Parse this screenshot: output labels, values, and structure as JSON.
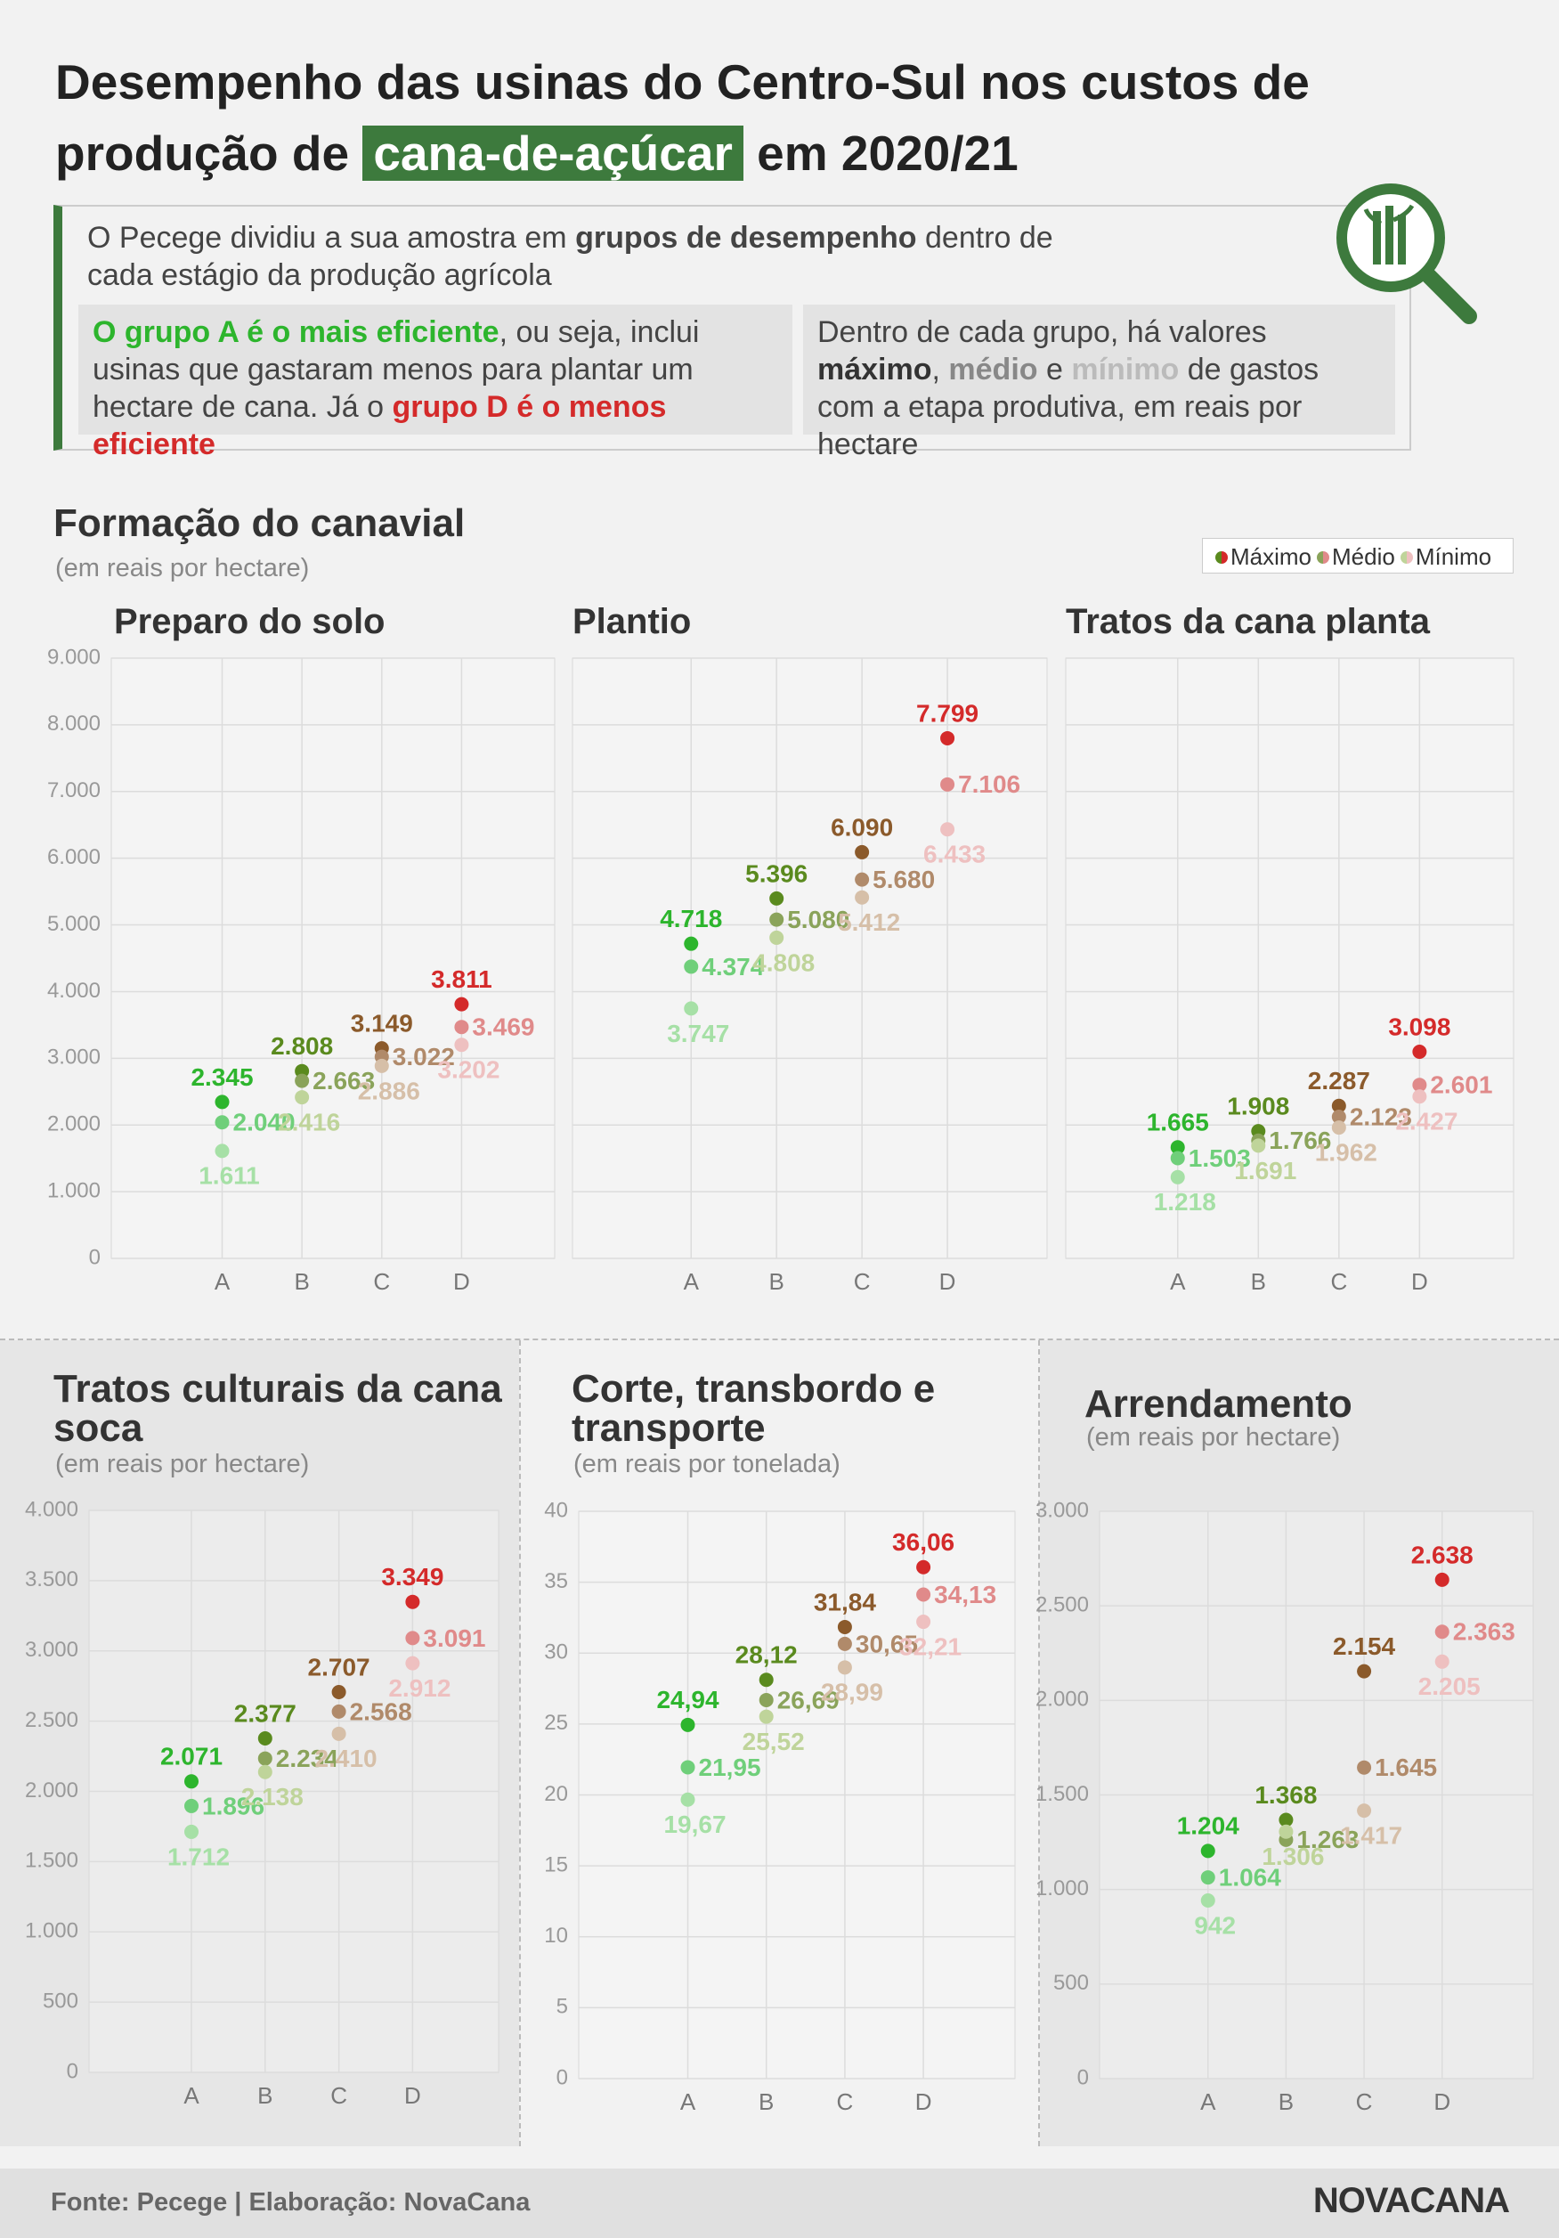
{
  "header": {
    "title_parts": [
      "Desempenho das usinas do Centro-Sul nos custos de",
      "produção de",
      "cana-de-açúcar",
      "em 2020/21"
    ]
  },
  "intro": {
    "text": [
      "O Pecege dividiu a sua amostra em",
      "grupos de desempenho",
      "dentro de cada estágio da produção agrícola"
    ],
    "left_box": [
      "O grupo A é o mais eficiente",
      ", ou seja, inclui usinas que gastaram menos para plantar um hectare de cana. Já o",
      "grupo D é o menos eficiente"
    ],
    "right_box": [
      "Dentro de cada grupo, há valores",
      "máximo",
      ",",
      "médio",
      "e",
      "mínimo",
      "de gastos com a etapa produtiva, em reais por hectare"
    ]
  },
  "section": {
    "title": "Formação do canavial",
    "subtitle": "(em reais por hectare)"
  },
  "legend": {
    "items": [
      "Máximo",
      "Médio",
      "Mínimo"
    ]
  },
  "chart_data": [
    {
      "type": "dot",
      "title": "Preparo do solo",
      "categories": [
        "A",
        "B",
        "C",
        "D"
      ],
      "ylim": [
        0,
        9000
      ],
      "yticks": [
        0,
        {
          "value": 1000,
          "label": "1.000"
        },
        {
          "value": 2000,
          "label": "2.000"
        },
        {
          "value": 3000,
          "label": "3.000"
        },
        {
          "value": 4000,
          "label": "4.000"
        },
        {
          "value": 5000,
          "label": "5.000"
        },
        {
          "value": 6000,
          "label": "6.000"
        },
        {
          "value": 7000,
          "label": "7.000"
        },
        {
          "value": 8000,
          "label": "8.000"
        },
        {
          "value": 9000,
          "label": "9.000"
        }
      ],
      "series": [
        {
          "colors": [
            "#2db52d",
            "#5a8a1e",
            "#8b5a2b",
            "#d42a2a"
          ],
          "values": [
            2345,
            2808,
            3149,
            3811
          ],
          "value_labels": [
            "2.345",
            "2.808",
            "3.149",
            "3.811"
          ]
        },
        {
          "colors": [
            "#6fcf7a",
            "#8aa35a",
            "#b08a6a",
            "#e08a8a"
          ],
          "values": [
            2040,
            2663,
            3022,
            3469
          ],
          "value_labels": [
            "2.040",
            "2.663",
            "3.022",
            "3.469"
          ]
        },
        {
          "colors": [
            "#a6e0a6",
            "#bfd49a",
            "#d6bfa8",
            "#eec0c0"
          ],
          "values": [
            1611,
            2416,
            2886,
            3202
          ],
          "value_labels": [
            "1.611",
            "2.416",
            "2.886",
            "3.202"
          ]
        }
      ]
    },
    {
      "type": "dot",
      "title": "Plantio",
      "categories": [
        "A",
        "B",
        "C",
        "D"
      ],
      "ylim": [
        0,
        9000
      ],
      "series": [
        {
          "colors": [
            "#2db52d",
            "#5a8a1e",
            "#8b5a2b",
            "#d42a2a"
          ],
          "values": [
            4718,
            5396,
            6090,
            7799
          ],
          "value_labels": [
            "4.718",
            "5.396",
            "6.090",
            "7.799"
          ]
        },
        {
          "colors": [
            "#6fcf7a",
            "#8aa35a",
            "#b08a6a",
            "#e08a8a"
          ],
          "values": [
            4374,
            5080,
            5680,
            7106
          ],
          "value_labels": [
            "4.374",
            "5.080",
            "5.680",
            "7.106"
          ]
        },
        {
          "colors": [
            "#a6e0a6",
            "#bfd49a",
            "#d6bfa8",
            "#eec0c0"
          ],
          "values": [
            3747,
            4808,
            5412,
            6433
          ],
          "value_labels": [
            "3.747",
            "4.808",
            "5.412",
            "6.433"
          ]
        }
      ]
    },
    {
      "type": "dot",
      "title": "Tratos da cana planta",
      "categories": [
        "A",
        "B",
        "C",
        "D"
      ],
      "ylim": [
        0,
        9000
      ],
      "series": [
        {
          "colors": [
            "#2db52d",
            "#5a8a1e",
            "#8b5a2b",
            "#d42a2a"
          ],
          "values": [
            1665,
            1908,
            2287,
            3098
          ],
          "value_labels": [
            "1.665",
            "1.908",
            "2.287",
            "3.098"
          ]
        },
        {
          "colors": [
            "#6fcf7a",
            "#8aa35a",
            "#b08a6a",
            "#e08a8a"
          ],
          "values": [
            1503,
            1766,
            2123,
            2601
          ],
          "value_labels": [
            "1.503",
            "1.766",
            "2.123",
            "2.601"
          ]
        },
        {
          "colors": [
            "#a6e0a6",
            "#bfd49a",
            "#d6bfa8",
            "#eec0c0"
          ],
          "values": [
            1218,
            1691,
            1962,
            2427
          ],
          "value_labels": [
            "1.218",
            "1.691",
            "1.962",
            "2.427"
          ]
        }
      ]
    },
    {
      "type": "dot",
      "title": "Tratos culturais da cana soca",
      "subtitle": "(em reais por hectare)",
      "categories": [
        "A",
        "B",
        "C",
        "D"
      ],
      "ylim": [
        0,
        4000
      ],
      "yticks": [
        0,
        500,
        {
          "value": 1000,
          "label": "1.000"
        },
        {
          "value": 1500,
          "label": "1.500"
        },
        {
          "value": 2000,
          "label": "2.000"
        },
        {
          "value": 2500,
          "label": "2.500"
        },
        {
          "value": 3000,
          "label": "3.000"
        },
        {
          "value": 3500,
          "label": "3.500"
        },
        {
          "value": 4000,
          "label": "4.000"
        }
      ],
      "series": [
        {
          "colors": [
            "#2db52d",
            "#5a8a1e",
            "#8b5a2b",
            "#d42a2a"
          ],
          "values": [
            2071,
            2377,
            2707,
            3349
          ],
          "value_labels": [
            "2.071",
            "2.377",
            "2.707",
            "3.349"
          ]
        },
        {
          "colors": [
            "#6fcf7a",
            "#8aa35a",
            "#b08a6a",
            "#e08a8a"
          ],
          "values": [
            1896,
            2234,
            2568,
            3091
          ],
          "value_labels": [
            "1.896",
            "2.234",
            "2.568",
            "3.091"
          ]
        },
        {
          "colors": [
            "#a6e0a6",
            "#bfd49a",
            "#d6bfa8",
            "#eec0c0"
          ],
          "values": [
            1712,
            2138,
            2410,
            2912
          ],
          "value_labels": [
            "1.712",
            "2.138",
            "2.410",
            "2.912"
          ]
        }
      ]
    },
    {
      "type": "dot",
      "title": "Corte, transbordo e transporte",
      "subtitle": "(em reais por tonelada)",
      "categories": [
        "A",
        "B",
        "C",
        "D"
      ],
      "ylim": [
        0,
        40
      ],
      "yticks": [
        0,
        5,
        10,
        15,
        20,
        25,
        30,
        35,
        40
      ],
      "series": [
        {
          "colors": [
            "#2db52d",
            "#5a8a1e",
            "#8b5a2b",
            "#d42a2a"
          ],
          "values": [
            24.94,
            28.12,
            31.84,
            36.06
          ],
          "value_labels": [
            "24,94",
            "28,12",
            "31,84",
            "36,06"
          ]
        },
        {
          "colors": [
            "#6fcf7a",
            "#8aa35a",
            "#b08a6a",
            "#e08a8a"
          ],
          "values": [
            21.95,
            26.69,
            30.65,
            34.13
          ],
          "value_labels": [
            "21,95",
            "26,69",
            "30,65",
            "34,13"
          ]
        },
        {
          "colors": [
            "#a6e0a6",
            "#bfd49a",
            "#d6bfa8",
            "#eec0c0"
          ],
          "values": [
            19.67,
            25.52,
            28.99,
            32.21
          ],
          "value_labels": [
            "19,67",
            "25,52",
            "28,99",
            "32,21"
          ]
        }
      ]
    },
    {
      "type": "dot",
      "title": "Arrendamento",
      "subtitle": "(em reais por hectare)",
      "categories": [
        "A",
        "B",
        "C",
        "D"
      ],
      "ylim": [
        0,
        3000
      ],
      "yticks": [
        0,
        500,
        {
          "value": 1000,
          "label": "1.000"
        },
        {
          "value": 1500,
          "label": "1.500"
        },
        {
          "value": 2000,
          "label": "2.000"
        },
        {
          "value": 2500,
          "label": "2.500"
        },
        {
          "value": 3000,
          "label": "3.000"
        }
      ],
      "series": [
        {
          "colors": [
            "#2db52d",
            "#5a8a1e",
            "#8b5a2b",
            "#d42a2a"
          ],
          "values": [
            1204,
            1368,
            2154,
            2638
          ],
          "value_labels": [
            "1.204",
            "1.368",
            "2.154",
            "2.638"
          ]
        },
        {
          "colors": [
            "#6fcf7a",
            "#8aa35a",
            "#b08a6a",
            "#e08a8a"
          ],
          "values": [
            1064,
            1263,
            1645,
            2363
          ],
          "value_labels": [
            "1.064",
            "1.263",
            "1.645",
            "2.363"
          ]
        },
        {
          "colors": [
            "#a6e0a6",
            "#bfd49a",
            "#d6bfa8",
            "#eec0c0"
          ],
          "values": [
            942,
            1306,
            1417,
            2205
          ],
          "value_labels": [
            "942",
            "1.306",
            "1.417",
            "2.205"
          ]
        }
      ]
    }
  ],
  "footer": {
    "source": "Fonte: Pecege | Elaboração: NovaCana",
    "logo": "NOVACANA"
  }
}
